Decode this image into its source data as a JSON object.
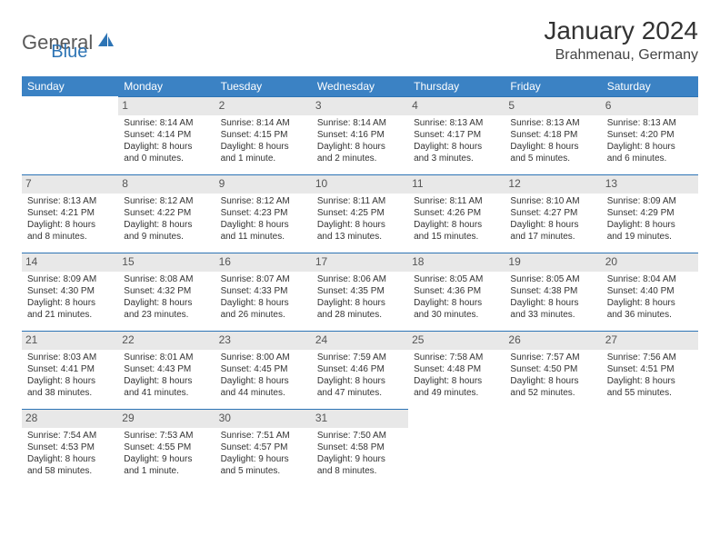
{
  "logo": {
    "word1": "General",
    "word2": "Blue"
  },
  "title": "January 2024",
  "location": "Brahmenau, Germany",
  "weekdays": [
    "Sunday",
    "Monday",
    "Tuesday",
    "Wednesday",
    "Thursday",
    "Friday",
    "Saturday"
  ],
  "colors": {
    "header_bg": "#3b82c4",
    "header_text": "#ffffff",
    "daynum_bg": "#e8e8e8",
    "divider": "#2d74b5",
    "text": "#333333",
    "logo_gray": "#5a5a5a",
    "logo_blue": "#2d74b5"
  },
  "typography": {
    "title_fontsize": 28,
    "location_fontsize": 16,
    "weekday_fontsize": 12,
    "cell_fontsize": 10,
    "daynum_fontsize": 12
  },
  "cells": {
    "r0c1": {
      "num": "1",
      "sr": "Sunrise: 8:14 AM",
      "ss": "Sunset: 4:14 PM",
      "dl1": "Daylight: 8 hours",
      "dl2": "and 0 minutes."
    },
    "r0c2": {
      "num": "2",
      "sr": "Sunrise: 8:14 AM",
      "ss": "Sunset: 4:15 PM",
      "dl1": "Daylight: 8 hours",
      "dl2": "and 1 minute."
    },
    "r0c3": {
      "num": "3",
      "sr": "Sunrise: 8:14 AM",
      "ss": "Sunset: 4:16 PM",
      "dl1": "Daylight: 8 hours",
      "dl2": "and 2 minutes."
    },
    "r0c4": {
      "num": "4",
      "sr": "Sunrise: 8:13 AM",
      "ss": "Sunset: 4:17 PM",
      "dl1": "Daylight: 8 hours",
      "dl2": "and 3 minutes."
    },
    "r0c5": {
      "num": "5",
      "sr": "Sunrise: 8:13 AM",
      "ss": "Sunset: 4:18 PM",
      "dl1": "Daylight: 8 hours",
      "dl2": "and 5 minutes."
    },
    "r0c6": {
      "num": "6",
      "sr": "Sunrise: 8:13 AM",
      "ss": "Sunset: 4:20 PM",
      "dl1": "Daylight: 8 hours",
      "dl2": "and 6 minutes."
    },
    "r1c0": {
      "num": "7",
      "sr": "Sunrise: 8:13 AM",
      "ss": "Sunset: 4:21 PM",
      "dl1": "Daylight: 8 hours",
      "dl2": "and 8 minutes."
    },
    "r1c1": {
      "num": "8",
      "sr": "Sunrise: 8:12 AM",
      "ss": "Sunset: 4:22 PM",
      "dl1": "Daylight: 8 hours",
      "dl2": "and 9 minutes."
    },
    "r1c2": {
      "num": "9",
      "sr": "Sunrise: 8:12 AM",
      "ss": "Sunset: 4:23 PM",
      "dl1": "Daylight: 8 hours",
      "dl2": "and 11 minutes."
    },
    "r1c3": {
      "num": "10",
      "sr": "Sunrise: 8:11 AM",
      "ss": "Sunset: 4:25 PM",
      "dl1": "Daylight: 8 hours",
      "dl2": "and 13 minutes."
    },
    "r1c4": {
      "num": "11",
      "sr": "Sunrise: 8:11 AM",
      "ss": "Sunset: 4:26 PM",
      "dl1": "Daylight: 8 hours",
      "dl2": "and 15 minutes."
    },
    "r1c5": {
      "num": "12",
      "sr": "Sunrise: 8:10 AM",
      "ss": "Sunset: 4:27 PM",
      "dl1": "Daylight: 8 hours",
      "dl2": "and 17 minutes."
    },
    "r1c6": {
      "num": "13",
      "sr": "Sunrise: 8:09 AM",
      "ss": "Sunset: 4:29 PM",
      "dl1": "Daylight: 8 hours",
      "dl2": "and 19 minutes."
    },
    "r2c0": {
      "num": "14",
      "sr": "Sunrise: 8:09 AM",
      "ss": "Sunset: 4:30 PM",
      "dl1": "Daylight: 8 hours",
      "dl2": "and 21 minutes."
    },
    "r2c1": {
      "num": "15",
      "sr": "Sunrise: 8:08 AM",
      "ss": "Sunset: 4:32 PM",
      "dl1": "Daylight: 8 hours",
      "dl2": "and 23 minutes."
    },
    "r2c2": {
      "num": "16",
      "sr": "Sunrise: 8:07 AM",
      "ss": "Sunset: 4:33 PM",
      "dl1": "Daylight: 8 hours",
      "dl2": "and 26 minutes."
    },
    "r2c3": {
      "num": "17",
      "sr": "Sunrise: 8:06 AM",
      "ss": "Sunset: 4:35 PM",
      "dl1": "Daylight: 8 hours",
      "dl2": "and 28 minutes."
    },
    "r2c4": {
      "num": "18",
      "sr": "Sunrise: 8:05 AM",
      "ss": "Sunset: 4:36 PM",
      "dl1": "Daylight: 8 hours",
      "dl2": "and 30 minutes."
    },
    "r2c5": {
      "num": "19",
      "sr": "Sunrise: 8:05 AM",
      "ss": "Sunset: 4:38 PM",
      "dl1": "Daylight: 8 hours",
      "dl2": "and 33 minutes."
    },
    "r2c6": {
      "num": "20",
      "sr": "Sunrise: 8:04 AM",
      "ss": "Sunset: 4:40 PM",
      "dl1": "Daylight: 8 hours",
      "dl2": "and 36 minutes."
    },
    "r3c0": {
      "num": "21",
      "sr": "Sunrise: 8:03 AM",
      "ss": "Sunset: 4:41 PM",
      "dl1": "Daylight: 8 hours",
      "dl2": "and 38 minutes."
    },
    "r3c1": {
      "num": "22",
      "sr": "Sunrise: 8:01 AM",
      "ss": "Sunset: 4:43 PM",
      "dl1": "Daylight: 8 hours",
      "dl2": "and 41 minutes."
    },
    "r3c2": {
      "num": "23",
      "sr": "Sunrise: 8:00 AM",
      "ss": "Sunset: 4:45 PM",
      "dl1": "Daylight: 8 hours",
      "dl2": "and 44 minutes."
    },
    "r3c3": {
      "num": "24",
      "sr": "Sunrise: 7:59 AM",
      "ss": "Sunset: 4:46 PM",
      "dl1": "Daylight: 8 hours",
      "dl2": "and 47 minutes."
    },
    "r3c4": {
      "num": "25",
      "sr": "Sunrise: 7:58 AM",
      "ss": "Sunset: 4:48 PM",
      "dl1": "Daylight: 8 hours",
      "dl2": "and 49 minutes."
    },
    "r3c5": {
      "num": "26",
      "sr": "Sunrise: 7:57 AM",
      "ss": "Sunset: 4:50 PM",
      "dl1": "Daylight: 8 hours",
      "dl2": "and 52 minutes."
    },
    "r3c6": {
      "num": "27",
      "sr": "Sunrise: 7:56 AM",
      "ss": "Sunset: 4:51 PM",
      "dl1": "Daylight: 8 hours",
      "dl2": "and 55 minutes."
    },
    "r4c0": {
      "num": "28",
      "sr": "Sunrise: 7:54 AM",
      "ss": "Sunset: 4:53 PM",
      "dl1": "Daylight: 8 hours",
      "dl2": "and 58 minutes."
    },
    "r4c1": {
      "num": "29",
      "sr": "Sunrise: 7:53 AM",
      "ss": "Sunset: 4:55 PM",
      "dl1": "Daylight: 9 hours",
      "dl2": "and 1 minute."
    },
    "r4c2": {
      "num": "30",
      "sr": "Sunrise: 7:51 AM",
      "ss": "Sunset: 4:57 PM",
      "dl1": "Daylight: 9 hours",
      "dl2": "and 5 minutes."
    },
    "r4c3": {
      "num": "31",
      "sr": "Sunrise: 7:50 AM",
      "ss": "Sunset: 4:58 PM",
      "dl1": "Daylight: 9 hours",
      "dl2": "and 8 minutes."
    }
  }
}
